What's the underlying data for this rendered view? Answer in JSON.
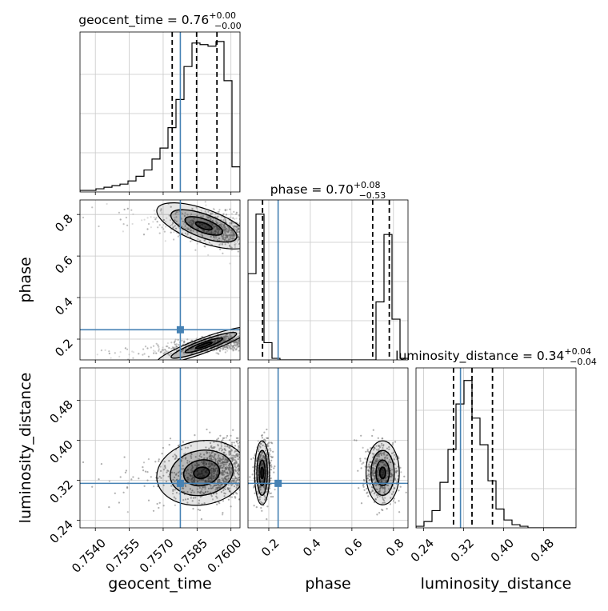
{
  "chart_data": {
    "type": "corner",
    "params": [
      "geocent_time",
      "phase",
      "luminosity_distance"
    ],
    "axis_labels": {
      "x": [
        "geocent_time",
        "phase",
        "luminosity_distance"
      ],
      "y": [
        "phase",
        "luminosity_distance"
      ]
    },
    "ranges": {
      "geocent_time": [
        0.75332,
        0.7604
      ],
      "phase": [
        0.1,
        0.87
      ],
      "luminosity_distance": [
        0.225,
        0.545
      ]
    },
    "ticks": {
      "geocent_time": [
        0.754,
        0.7555,
        0.757,
        0.7585,
        0.76
      ],
      "phase": [
        0.2,
        0.4,
        0.6,
        0.8
      ],
      "luminosity_distance": [
        0.24,
        0.32,
        0.4,
        0.48
      ]
    },
    "tick_labels": {
      "geocent_time": [
        "0.7540",
        "0.7555",
        "0.7570",
        "0.7585",
        "0.7600"
      ],
      "phase": [
        "0.2",
        "0.4",
        "0.6",
        "0.8"
      ],
      "luminosity_distance": [
        "0.24",
        "0.32",
        "0.40",
        "0.48"
      ]
    },
    "truths": {
      "geocent_time": 0.75776,
      "phase": 0.245,
      "luminosity_distance": 0.314
    },
    "quantiles": {
      "geocent_time": [
        0.7574,
        0.75848,
        0.75938
      ],
      "phase": [
        0.17,
        0.7,
        0.78
      ],
      "luminosity_distance": [
        0.3,
        0.337,
        0.378
      ]
    },
    "titles": [
      {
        "param": "geocent_time",
        "value": "0.76",
        "plus": "+0.00",
        "minus": "−0.00"
      },
      {
        "param": "phase",
        "value": "0.70",
        "plus": "+0.08",
        "minus": "−0.53"
      },
      {
        "param": "luminosity_distance",
        "value": "0.34",
        "plus": "+0.04",
        "minus": "−0.04"
      }
    ],
    "title_eq": " = ",
    "histograms": {
      "geocent_time": {
        "edges_start": 0.75332,
        "bin_width": 0.000354,
        "counts": [
          0.01,
          0.01,
          0.02,
          0.03,
          0.04,
          0.05,
          0.07,
          0.1,
          0.14,
          0.21,
          0.28,
          0.41,
          0.59,
          0.8,
          0.95,
          0.94,
          0.93,
          0.96,
          0.71,
          0.16
        ]
      },
      "phase": {
        "edges_start": 0.1,
        "bin_width": 0.0385,
        "counts": [
          0.55,
          0.93,
          0.11,
          0.01,
          0.0,
          0.0,
          0.0,
          0.0,
          0.0,
          0.0,
          0.0,
          0.0,
          0.0,
          0.0,
          0.0,
          0.0,
          0.37,
          0.8,
          0.26,
          0.01
        ]
      },
      "luminosity_distance": {
        "edges_start": 0.225,
        "bin_width": 0.016,
        "counts": [
          0.01,
          0.04,
          0.11,
          0.29,
          0.5,
          0.79,
          0.94,
          0.7,
          0.53,
          0.3,
          0.12,
          0.05,
          0.02,
          0.01,
          0.0,
          0.0,
          0.0,
          0.0,
          0.0,
          0.0
        ]
      }
    },
    "colors": {
      "truth": "#4682b4",
      "hist": "#000000",
      "grid": "#c8c8c8",
      "scatter": "#808080"
    }
  }
}
